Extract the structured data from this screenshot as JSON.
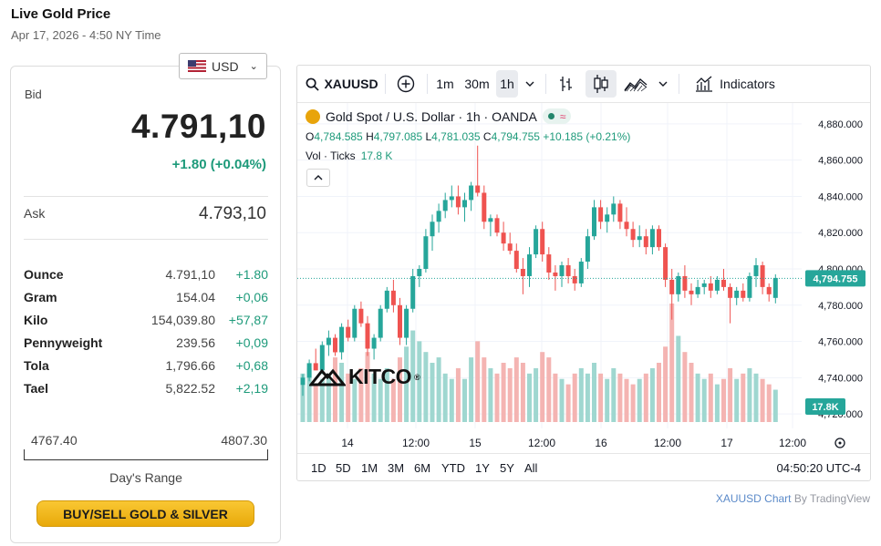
{
  "header": {
    "title": "Live Gold Price",
    "datetime": "Apr 17, 2026 - 4:50 NY Time"
  },
  "currency": {
    "selected": "USD",
    "icon": "us-flag-icon"
  },
  "bid": {
    "label": "Bid",
    "value": "4.791,10",
    "change": "+1.80 (+0.04%)"
  },
  "ask": {
    "label": "Ask",
    "value": "4.793,10"
  },
  "units": [
    {
      "name": "Ounce",
      "value": "4.791,10",
      "change": "+1.80"
    },
    {
      "name": "Gram",
      "value": "154.04",
      "change": "+0,06"
    },
    {
      "name": "Kilo",
      "value": "154,039.80",
      "change": "+57,87"
    },
    {
      "name": "Pennyweight",
      "value": "239.56",
      "change": "+0,09"
    },
    {
      "name": "Tola",
      "value": "1,796.66",
      "change": "+0,68"
    },
    {
      "name": "Tael",
      "value": "5,822.52",
      "change": "+2,19"
    }
  ],
  "range": {
    "low": "4767.40",
    "high": "4807.30",
    "label": "Day's Range"
  },
  "buy_button": "BUY/SELL GOLD & SILVER",
  "chart_toolbar": {
    "symbol": "XAUUSD",
    "intervals": [
      "1m",
      "30m",
      "1h"
    ],
    "active_interval": "1h",
    "indicators": "Indicators"
  },
  "chart_legend": {
    "title": "Gold Spot / U.S. Dollar · 1h · OANDA",
    "o_label": "O",
    "o": "4,784.585",
    "h_label": "H",
    "h": "4,797.085",
    "l_label": "L",
    "l": "4,781.035",
    "c_label": "C",
    "c": "4,794.755",
    "change": "+10.185 (+0.21%)",
    "vol_label": "Vol · Ticks",
    "vol_value": "17.8 K"
  },
  "watermark": "KITCO",
  "bottom_bar": {
    "ranges": [
      "1D",
      "5D",
      "1M",
      "3M",
      "6M",
      "YTD",
      "1Y",
      "5Y",
      "All"
    ],
    "clock": "04:50:20 UTC-4"
  },
  "credit": {
    "symbol_text": "XAUUSD Chart",
    "by_text": "By TradingView"
  },
  "colors": {
    "up": "#26a69a",
    "down": "#ef5350",
    "accent_green": "#1d9a7a",
    "button_gold": "#f5b51e"
  },
  "chart_data": {
    "type": "candlestick",
    "symbol": "XAUUSD",
    "title": "Gold Spot / U.S. Dollar · 1h · OANDA",
    "y_ticks": [
      "4,880.000",
      "4,860.000",
      "4,840.000",
      "4,820.000",
      "4,800.000",
      "4,780.000",
      "4,760.000",
      "4,740.000",
      "4,720.000"
    ],
    "x_ticks": [
      "14",
      "12:00",
      "15",
      "12:00",
      "16",
      "12:00",
      "17",
      "12:00"
    ],
    "ylim": [
      4712,
      4888
    ],
    "last_price": "4,794.755",
    "last_volume": "17.8K",
    "grid": true,
    "candles": [
      [
        4736,
        4742,
        4730,
        4740,
        9
      ],
      [
        4740,
        4750,
        4738,
        4748,
        10
      ],
      [
        4748,
        4756,
        4744,
        4744,
        7
      ],
      [
        4744,
        4760,
        4742,
        4758,
        8
      ],
      [
        4758,
        4766,
        4752,
        4762,
        9
      ],
      [
        4762,
        4764,
        4752,
        4754,
        12
      ],
      [
        4754,
        4770,
        4750,
        4768,
        11
      ],
      [
        4768,
        4772,
        4760,
        4762,
        9
      ],
      [
        4762,
        4780,
        4760,
        4778,
        8
      ],
      [
        4778,
        4782,
        4768,
        4770,
        10
      ],
      [
        4770,
        4774,
        4752,
        4756,
        13
      ],
      [
        4756,
        4764,
        4750,
        4762,
        9
      ],
      [
        4762,
        4780,
        4760,
        4778,
        8
      ],
      [
        4778,
        4790,
        4776,
        4788,
        10
      ],
      [
        4788,
        4794,
        4776,
        4780,
        8
      ],
      [
        4780,
        4784,
        4758,
        4762,
        12
      ],
      [
        4762,
        4780,
        4758,
        4778,
        14
      ],
      [
        4778,
        4800,
        4776,
        4796,
        17
      ],
      [
        4796,
        4802,
        4790,
        4800,
        15
      ],
      [
        4800,
        4822,
        4798,
        4818,
        13
      ],
      [
        4818,
        4830,
        4810,
        4826,
        11
      ],
      [
        4826,
        4836,
        4820,
        4832,
        12
      ],
      [
        4832,
        4842,
        4828,
        4838,
        9
      ],
      [
        4838,
        4846,
        4834,
        4840,
        8
      ],
      [
        4840,
        4846,
        4830,
        4834,
        10
      ],
      [
        4834,
        4842,
        4826,
        4838,
        8
      ],
      [
        4838,
        4848,
        4832,
        4846,
        12
      ],
      [
        4846,
        4868,
        4840,
        4842,
        15
      ],
      [
        4842,
        4846,
        4822,
        4826,
        12
      ],
      [
        4826,
        4830,
        4818,
        4828,
        10
      ],
      [
        4828,
        4830,
        4818,
        4820,
        9
      ],
      [
        4820,
        4826,
        4810,
        4814,
        11
      ],
      [
        4814,
        4820,
        4808,
        4810,
        10
      ],
      [
        4810,
        4814,
        4798,
        4800,
        12
      ],
      [
        4800,
        4806,
        4786,
        4796,
        11
      ],
      [
        4796,
        4812,
        4790,
        4808,
        9
      ],
      [
        4808,
        4824,
        4806,
        4822,
        10
      ],
      [
        4822,
        4826,
        4804,
        4808,
        13
      ],
      [
        4808,
        4812,
        4794,
        4798,
        12
      ],
      [
        4798,
        4802,
        4788,
        4796,
        9
      ],
      [
        4796,
        4804,
        4790,
        4802,
        8
      ],
      [
        4802,
        4806,
        4792,
        4796,
        7
      ],
      [
        4796,
        4800,
        4788,
        4792,
        9
      ],
      [
        4792,
        4806,
        4790,
        4804,
        10
      ],
      [
        4804,
        4822,
        4800,
        4818,
        9
      ],
      [
        4818,
        4838,
        4816,
        4834,
        11
      ],
      [
        4834,
        4838,
        4822,
        4826,
        9
      ],
      [
        4826,
        4834,
        4820,
        4830,
        8
      ],
      [
        4830,
        4840,
        4826,
        4836,
        10
      ],
      [
        4836,
        4838,
        4822,
        4826,
        9
      ],
      [
        4826,
        4834,
        4818,
        4822,
        8
      ],
      [
        4822,
        4826,
        4812,
        4816,
        7
      ],
      [
        4816,
        4824,
        4812,
        4818,
        8
      ],
      [
        4818,
        4822,
        4808,
        4812,
        9
      ],
      [
        4812,
        4824,
        4808,
        4822,
        10
      ],
      [
        4822,
        4824,
        4810,
        4812,
        11
      ],
      [
        4812,
        4814,
        4790,
        4794,
        14
      ],
      [
        4794,
        4800,
        4772,
        4786,
        22
      ],
      [
        4786,
        4798,
        4782,
        4796,
        16
      ],
      [
        4796,
        4802,
        4784,
        4788,
        13
      ],
      [
        4788,
        4792,
        4780,
        4786,
        11
      ],
      [
        4786,
        4794,
        4784,
        4790,
        9
      ],
      [
        4790,
        4794,
        4786,
        4792,
        8
      ],
      [
        4792,
        4796,
        4784,
        4788,
        9
      ],
      [
        4788,
        4796,
        4786,
        4794,
        7
      ],
      [
        4794,
        4800,
        4788,
        4790,
        8
      ],
      [
        4790,
        4792,
        4770,
        4784,
        10
      ],
      [
        4784,
        4790,
        4780,
        4788,
        8
      ],
      [
        4788,
        4792,
        4782,
        4784,
        9
      ],
      [
        4784,
        4798,
        4782,
        4796,
        10
      ],
      [
        4796,
        4806,
        4790,
        4802,
        9
      ],
      [
        4802,
        4804,
        4786,
        4790,
        8
      ],
      [
        4790,
        4792,
        4782,
        4786,
        7
      ],
      [
        4784,
        4797,
        4781,
        4795,
        6
      ]
    ]
  }
}
